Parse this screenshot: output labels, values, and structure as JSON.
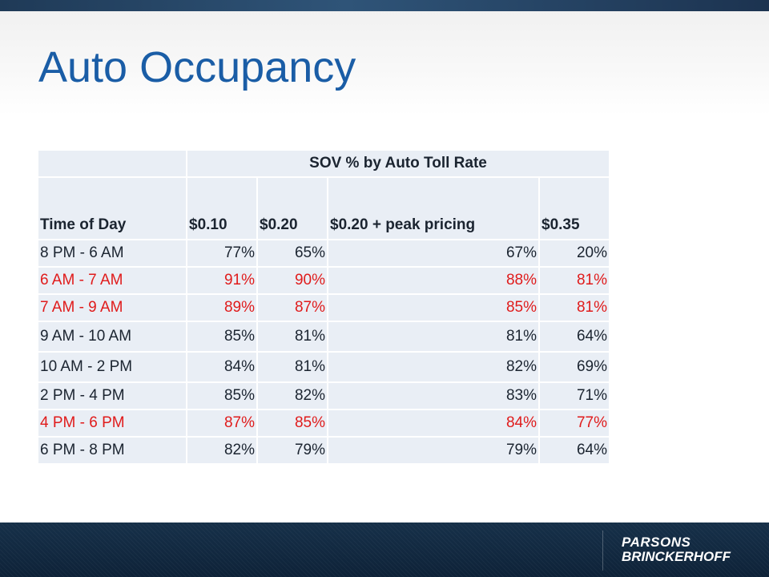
{
  "slide": {
    "title": "Auto Occupancy"
  },
  "table": {
    "group_header": "SOV % by Auto Toll Rate",
    "columns": [
      "Time of Day",
      "$0.10",
      "$0.20",
      "$0.20 + peak pricing",
      "$0.35"
    ],
    "rows": [
      {
        "time": "8 PM - 6 AM",
        "values": [
          "77%",
          "65%",
          "67%",
          "20%"
        ],
        "highlight": false
      },
      {
        "time": "6 AM - 7 AM",
        "values": [
          "91%",
          "90%",
          "88%",
          "81%"
        ],
        "highlight": true
      },
      {
        "time": "7 AM - 9 AM",
        "values": [
          "89%",
          "87%",
          "85%",
          "81%"
        ],
        "highlight": true
      },
      {
        "time": "9 AM - 10 AM",
        "values": [
          "85%",
          "81%",
          "81%",
          "64%"
        ],
        "highlight": false
      },
      {
        "time": "10 AM - 2 PM",
        "values": [
          "84%",
          "81%",
          "82%",
          "69%"
        ],
        "highlight": false
      },
      {
        "time": "2 PM - 4 PM",
        "values": [
          "85%",
          "82%",
          "83%",
          "71%"
        ],
        "highlight": false
      },
      {
        "time": "4 PM - 6 PM",
        "values": [
          "87%",
          "85%",
          "84%",
          "77%"
        ],
        "highlight": true
      },
      {
        "time": "6 PM - 8 PM",
        "values": [
          "82%",
          "79%",
          "79%",
          "64%"
        ],
        "highlight": false
      }
    ]
  },
  "footer": {
    "logo_line1": "PARSONS",
    "logo_line2": "BRINCKERHOFF"
  },
  "colors": {
    "title": "#1a5da6",
    "highlight_text": "#e01b1b",
    "cell_background": "#e9eef5",
    "footer_background": "#163049"
  }
}
